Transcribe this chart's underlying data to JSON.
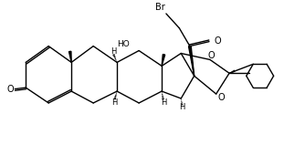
{
  "bg_color": "#ffffff",
  "line_color": "#000000",
  "lw": 1.0,
  "figsize": [
    3.11,
    1.81
  ],
  "dpi": 100,
  "xlim": [
    0,
    10
  ],
  "ylim": [
    0,
    6
  ]
}
